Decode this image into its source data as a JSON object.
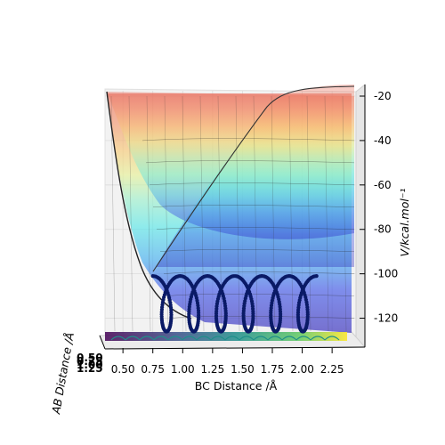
{
  "chart_data": {
    "type": "surface3d",
    "xlabel": "BC Distance /Å",
    "ylabel": "AB Distance /Å",
    "zlabel": "V/kcal.mol⁻¹",
    "x_ticks": [
      "0.50",
      "0.75",
      "1.00",
      "1.25",
      "1.50",
      "1.75",
      "2.00",
      "2.25"
    ],
    "y_ticks": [
      "0.50",
      "0.75",
      "1.00",
      "1.25"
    ],
    "z_ticks": [
      "-20",
      "-40",
      "-60",
      "-80",
      "-100",
      "-120"
    ],
    "xlim": [
      0.35,
      2.45
    ],
    "zlim": [
      -131,
      -18
    ],
    "colormap": "jet",
    "trajectory_color": "#0a1a66",
    "trajectory_start": {
      "x": 0.75,
      "z": -101
    },
    "trajectory_min_z": -126,
    "trajectory_end": {
      "x": 2.12,
      "z": -106
    },
    "contour_colormap": "viridis"
  }
}
